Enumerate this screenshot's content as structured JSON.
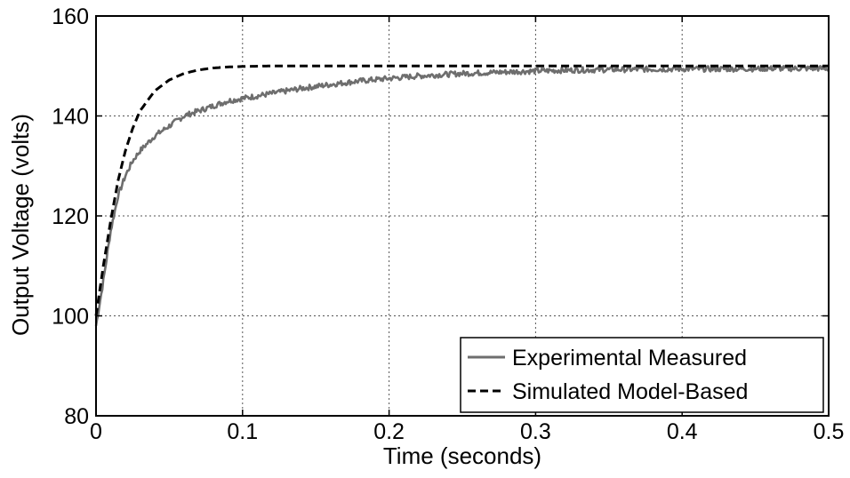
{
  "chart_data": {
    "type": "line",
    "xlabel": "Time (seconds)",
    "ylabel": "Output Voltage (volts)",
    "xlim": [
      0,
      0.5
    ],
    "ylim": [
      80,
      160
    ],
    "xticks": [
      0,
      0.1,
      0.2,
      0.3,
      0.4,
      0.5
    ],
    "yticks": [
      80,
      100,
      120,
      140,
      160
    ],
    "xtick_labels": [
      "0",
      "0.1",
      "0.2",
      "0.3",
      "0.4",
      "0.5"
    ],
    "ytick_labels": [
      "80",
      "100",
      "120",
      "140",
      "160"
    ],
    "grid": true,
    "legend_position": "bottom-right",
    "series": [
      {
        "name": "Experimental Measured",
        "color": "#6e6e6e",
        "line_style": "solid",
        "noisy": true,
        "x": [
          0,
          0.005,
          0.01,
          0.015,
          0.02,
          0.025,
          0.03,
          0.04,
          0.05,
          0.06,
          0.07,
          0.08,
          0.09,
          0.1,
          0.12,
          0.14,
          0.16,
          0.18,
          0.2,
          0.22,
          0.25,
          0.28,
          0.3,
          0.33,
          0.36,
          0.4,
          0.43,
          0.46,
          0.5
        ],
        "y": [
          98,
          107,
          117,
          124,
          128,
          131,
          133,
          136,
          138,
          140,
          141,
          142,
          143,
          143.5,
          144.5,
          145.5,
          146.3,
          147,
          147.5,
          148,
          148.5,
          148.8,
          149,
          149.2,
          149.3,
          149.4,
          149.4,
          149.5,
          149.5
        ]
      },
      {
        "name": "Simulated Model-Based",
        "color": "#000000",
        "line_style": "dashed",
        "noisy": false,
        "x": [
          0,
          0.005,
          0.01,
          0.015,
          0.02,
          0.025,
          0.03,
          0.04,
          0.05,
          0.06,
          0.07,
          0.08,
          0.09,
          0.1,
          0.12,
          0.15,
          0.2,
          0.3,
          0.4,
          0.5
        ],
        "y": [
          100,
          110,
          119,
          127,
          133,
          137.5,
          141,
          145,
          147.2,
          148.5,
          149.2,
          149.6,
          149.8,
          149.9,
          150,
          150,
          150,
          150,
          150,
          150
        ]
      }
    ]
  }
}
